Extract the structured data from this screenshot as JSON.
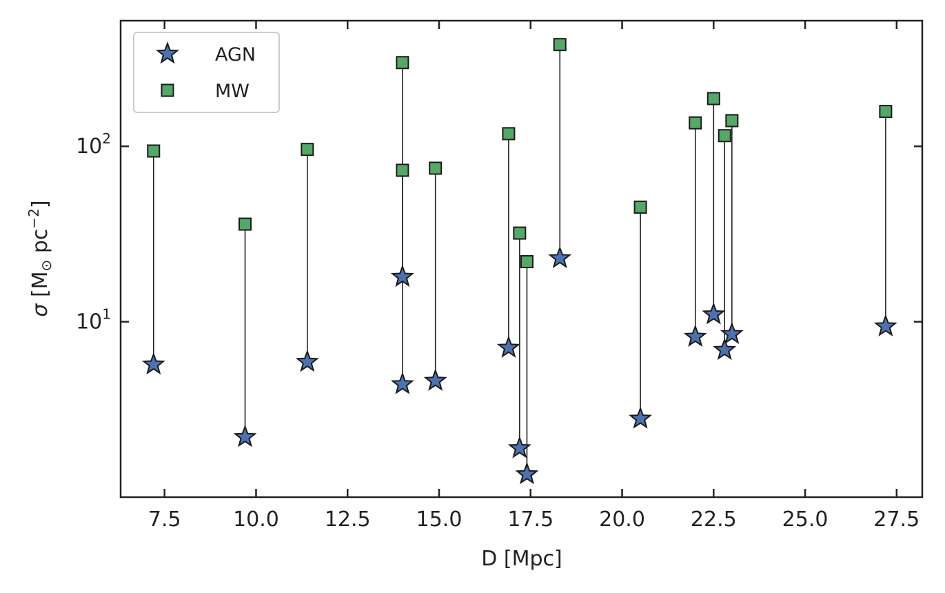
{
  "chart_data": {
    "type": "scatter",
    "xlabel": "D [Mpc]",
    "ylabel": "σ [M☉ pc⁻²]",
    "ylabel_parts": {
      "sigma": "σ",
      "open": " [M",
      "sun": "⊙",
      "unit": " pc",
      "exp": "−2",
      "close": "]"
    },
    "xlim": [
      6.3,
      28.2
    ],
    "ylim": [
      1.0,
      520
    ],
    "yscale": "log",
    "x_ticks": [
      7.5,
      10.0,
      12.5,
      15.0,
      17.5,
      20.0,
      22.5,
      25.0,
      27.5
    ],
    "x_tick_labels": [
      "7.5",
      "10.0",
      "12.5",
      "15.0",
      "17.5",
      "20.0",
      "22.5",
      "25.0",
      "27.5"
    ],
    "y_major_ticks": [
      10,
      100
    ],
    "y_tick_labels": [
      {
        "base": "10",
        "exp": "1",
        "value": 10
      },
      {
        "base": "10",
        "exp": "2",
        "value": 100
      }
    ],
    "legend": {
      "position": "upper left",
      "entries": [
        {
          "label": "AGN",
          "marker": "star",
          "color": "#4c72b0"
        },
        {
          "label": "MW",
          "marker": "square",
          "color": "#55a868"
        }
      ]
    },
    "colors": {
      "agn": "#4c72b0",
      "mw": "#55a868",
      "edge": "#1a1a1a",
      "connector": "#222222"
    },
    "series": [
      {
        "name": "AGN",
        "marker": "star",
        "color": "#4c72b0",
        "x": [
          7.2,
          9.7,
          11.4,
          14.0,
          14.0,
          14.9,
          16.9,
          17.2,
          17.4,
          18.3,
          20.5,
          22.0,
          22.5,
          22.8,
          23.0,
          27.2
        ],
        "y": [
          5.7,
          2.2,
          5.9,
          18.0,
          4.4,
          4.6,
          7.1,
          1.9,
          1.35,
          23.0,
          2.8,
          8.2,
          11.0,
          6.9,
          8.5,
          9.4
        ]
      },
      {
        "name": "MW",
        "marker": "square",
        "color": "#55a868",
        "x": [
          7.2,
          9.7,
          11.4,
          14.0,
          14.0,
          14.9,
          16.9,
          17.2,
          17.4,
          18.3,
          20.5,
          22.0,
          22.5,
          22.8,
          23.0,
          27.2
        ],
        "y": [
          94,
          36,
          96,
          73,
          300,
          75,
          118,
          32,
          22,
          380,
          45,
          136,
          187,
          115,
          140,
          158
        ]
      }
    ]
  }
}
